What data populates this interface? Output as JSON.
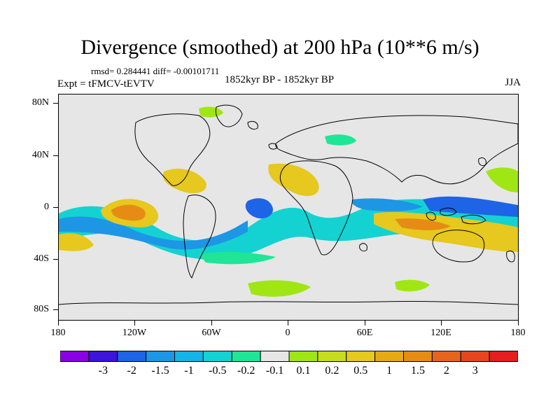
{
  "plot": {
    "title": "Divergence (smoothed) at 200 hPa (10**6 m/s)",
    "stats": "rmsd= 0.284441  diff= -0.00101711",
    "expt": "Expt = tFMCV-tEVTV",
    "period": "1852kyr BP - 1852kyr BP",
    "season": "JJA"
  },
  "axes": {
    "y_labels": [
      "80N",
      "40N",
      "0",
      "40S",
      "80S"
    ],
    "x_labels": [
      "180",
      "120W",
      "60W",
      "0",
      "60E",
      "120E",
      "180"
    ]
  },
  "colorbar": {
    "colors": [
      "#8a00e6",
      "#3c14dc",
      "#1e64e6",
      "#1e96e6",
      "#14b4e6",
      "#14d2d2",
      "#1ee696",
      "#e6e6e6",
      "#a0e614",
      "#c8dc1e",
      "#e6c81e",
      "#e6aa14",
      "#e68c14",
      "#e6641e",
      "#e6461e",
      "#e61e1e"
    ],
    "labels": [
      "-3",
      "-2",
      "-1.5",
      "-1",
      "-0.5",
      "-0.2",
      "-0.1",
      "0.1",
      "0.2",
      "0.5",
      "1",
      "1.5",
      "2",
      "3"
    ]
  },
  "map_colors": {
    "background": "#e6e6e6",
    "coastline": "#000000"
  }
}
